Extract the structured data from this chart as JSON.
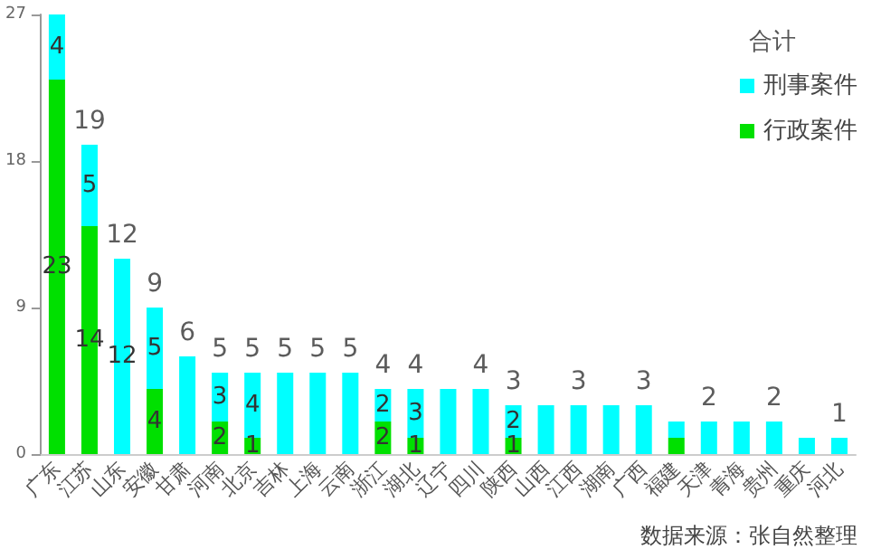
{
  "chart_data": {
    "type": "bar",
    "stacked": true,
    "categories": [
      "广东",
      "江苏",
      "山东",
      "安徽",
      "甘肃",
      "河南",
      "北京",
      "吉林",
      "上海",
      "云南",
      "浙江",
      "湖北",
      "辽宁",
      "四川",
      "陕西",
      "山西",
      "江西",
      "湖南",
      "广西",
      "福建",
      "天津",
      "青海",
      "贵州",
      "重庆",
      "河北"
    ],
    "series": [
      {
        "name": "行政案件",
        "color": "#00e000",
        "values": [
          23,
          14,
          0,
          4,
          0,
          2,
          1,
          0,
          0,
          0,
          2,
          1,
          0,
          0,
          1,
          0,
          0,
          0,
          0,
          1,
          0,
          0,
          0,
          0,
          0
        ],
        "value_labels": [
          "23",
          "14",
          null,
          "4",
          null,
          "2",
          "1",
          null,
          null,
          null,
          "2",
          "1",
          null,
          null,
          "1",
          null,
          null,
          null,
          null,
          null,
          null,
          null,
          null,
          null,
          null
        ]
      },
      {
        "name": "刑事案件",
        "color": "#00ffff",
        "values": [
          4,
          5,
          12,
          5,
          6,
          3,
          4,
          5,
          5,
          5,
          2,
          3,
          4,
          4,
          2,
          3,
          3,
          3,
          3,
          1,
          2,
          2,
          2,
          1,
          1
        ],
        "value_labels": [
          "4",
          "5",
          "12",
          "5",
          null,
          "3",
          "4",
          null,
          null,
          null,
          "2",
          "3",
          null,
          null,
          "2",
          null,
          null,
          null,
          null,
          null,
          null,
          null,
          null,
          null,
          null
        ]
      }
    ],
    "totals": [
      "27",
      "19",
      "12",
      "9",
      "6",
      "5",
      "5",
      "5",
      "5",
      "5",
      "4",
      "4",
      null,
      "4",
      "3",
      null,
      "3",
      null,
      "3",
      null,
      "2",
      null,
      "2",
      null,
      "1"
    ],
    "ylim": [
      0,
      27
    ],
    "yticks": [
      0,
      9,
      18,
      27
    ],
    "grid": false,
    "legend": "top right",
    "legend_title": "合计",
    "annotations": [
      "数据来源：张自然整理"
    ]
  }
}
